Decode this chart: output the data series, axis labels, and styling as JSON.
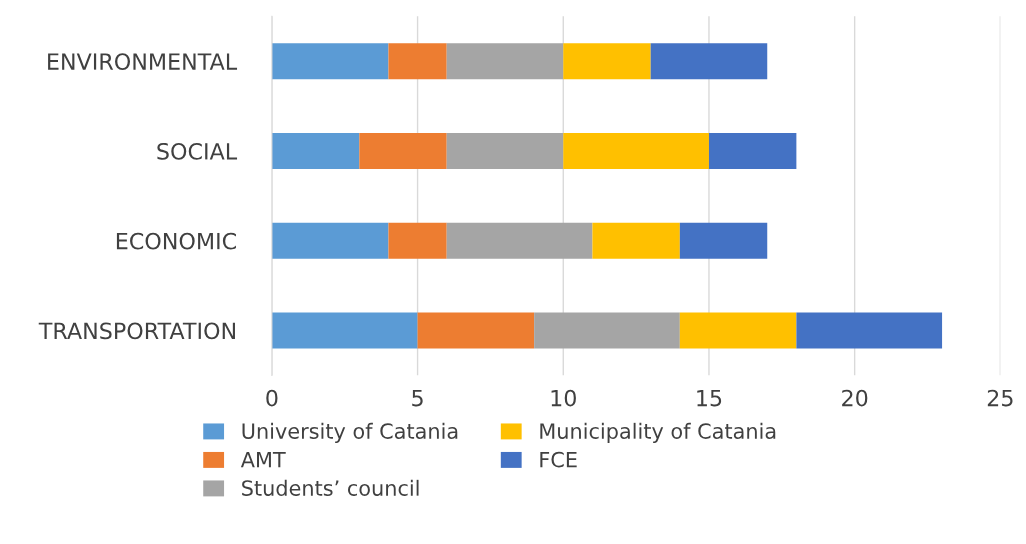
{
  "chart_data": {
    "type": "bar",
    "orientation": "horizontal",
    "stacked": true,
    "categories": [
      "ENVIRONMENTAL",
      "SOCIAL",
      "ECONOMIC",
      "TRANSPORTATION"
    ],
    "series": [
      {
        "name": "University of Catania",
        "color": "#5b9bd5",
        "values": [
          4,
          3,
          4,
          5
        ]
      },
      {
        "name": "AMT",
        "color": "#ed7d31",
        "values": [
          2,
          3,
          2,
          4
        ]
      },
      {
        "name": "Students’ council",
        "color": "#a5a5a5",
        "values": [
          4,
          4,
          5,
          5
        ]
      },
      {
        "name": "Municipality of Catania",
        "color": "#ffc000",
        "values": [
          3,
          5,
          3,
          4
        ]
      },
      {
        "name": "FCE",
        "color": "#4472c4",
        "values": [
          4,
          3,
          3,
          5
        ]
      }
    ],
    "xlim": [
      0,
      25
    ],
    "xticks": [
      0,
      5,
      10,
      15,
      20,
      25
    ],
    "grid": "x",
    "legend": "bottom"
  }
}
